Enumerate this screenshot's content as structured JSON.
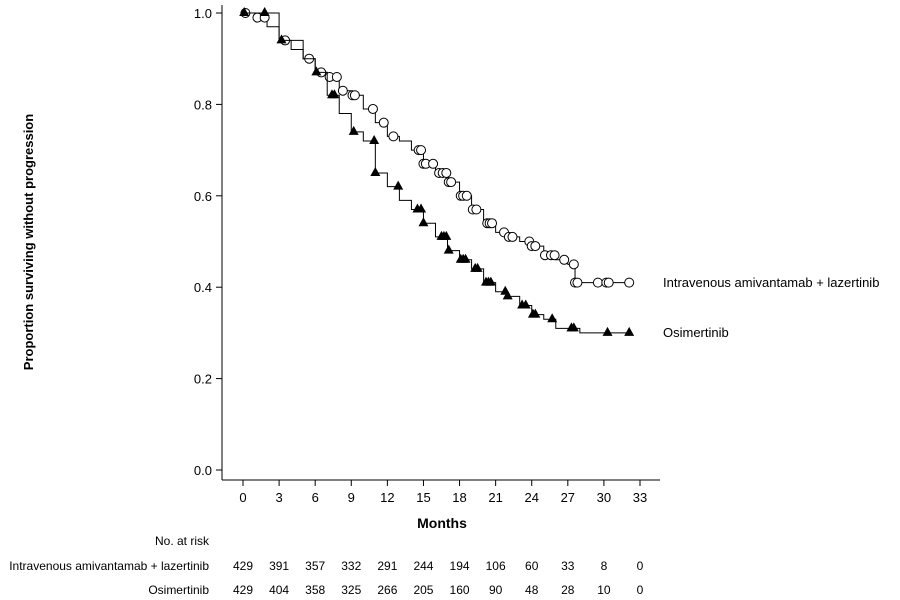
{
  "chart_data": {
    "type": "line",
    "subtype": "kaplan-meier",
    "xlabel": "Months",
    "ylabel": "Proportion surviving without progression",
    "xlim": [
      0,
      33
    ],
    "ylim": [
      0,
      1.0
    ],
    "xticks": [
      0,
      3,
      6,
      9,
      12,
      15,
      18,
      21,
      24,
      27,
      30,
      33
    ],
    "yticks": [
      "0.0",
      "0.2",
      "0.4",
      "0.6",
      "0.8",
      "1.0"
    ],
    "grid": false,
    "series": [
      {
        "name": "Intravenous amivantamab + lazertinib",
        "marker": "open-circle",
        "points": [
          [
            0,
            1.0
          ],
          [
            1,
            0.99
          ],
          [
            2,
            0.97
          ],
          [
            3,
            0.94
          ],
          [
            4,
            0.92
          ],
          [
            5,
            0.9
          ],
          [
            6,
            0.87
          ],
          [
            7,
            0.86
          ],
          [
            8,
            0.83
          ],
          [
            9,
            0.82
          ],
          [
            10,
            0.79
          ],
          [
            11,
            0.76
          ],
          [
            12,
            0.73
          ],
          [
            13,
            0.72
          ],
          [
            14,
            0.7
          ],
          [
            15,
            0.67
          ],
          [
            16,
            0.65
          ],
          [
            17,
            0.63
          ],
          [
            18,
            0.6
          ],
          [
            19,
            0.57
          ],
          [
            20,
            0.54
          ],
          [
            21,
            0.52
          ],
          [
            22,
            0.51
          ],
          [
            23,
            0.5
          ],
          [
            24,
            0.49
          ],
          [
            25,
            0.47
          ],
          [
            26,
            0.46
          ],
          [
            27,
            0.45
          ],
          [
            27.6,
            0.41
          ],
          [
            32.1,
            0.41
          ]
        ],
        "censored": [
          0.2,
          1.2,
          1.8,
          3.5,
          5.5,
          6.5,
          7.2,
          7.8,
          8.3,
          9.1,
          9.3,
          10.8,
          11.7,
          12.5,
          14.6,
          14.8,
          15.0,
          15.2,
          15.8,
          16.3,
          16.6,
          16.9,
          17.1,
          17.3,
          18.1,
          18.3,
          18.6,
          19.1,
          19.4,
          20.3,
          20.5,
          20.7,
          21.7,
          22.1,
          22.4,
          23.8,
          24.0,
          24.3,
          25.1,
          25.6,
          25.9,
          26.7,
          27.5,
          27.6,
          27.8,
          29.5,
          30.2,
          30.4,
          32.1
        ]
      },
      {
        "name": "Osimertinib",
        "marker": "filled-triangle",
        "points": [
          [
            0,
            1.0
          ],
          [
            3,
            0.94
          ],
          [
            5,
            0.9
          ],
          [
            6,
            0.87
          ],
          [
            7,
            0.82
          ],
          [
            8,
            0.78
          ],
          [
            9,
            0.74
          ],
          [
            10,
            0.72
          ],
          [
            11,
            0.65
          ],
          [
            12,
            0.62
          ],
          [
            13,
            0.59
          ],
          [
            14,
            0.57
          ],
          [
            15,
            0.54
          ],
          [
            16,
            0.51
          ],
          [
            17,
            0.48
          ],
          [
            18,
            0.46
          ],
          [
            19,
            0.44
          ],
          [
            20,
            0.41
          ],
          [
            21,
            0.39
          ],
          [
            22,
            0.38
          ],
          [
            23,
            0.36
          ],
          [
            24,
            0.34
          ],
          [
            25,
            0.33
          ],
          [
            26,
            0.31
          ],
          [
            27,
            0.31
          ],
          [
            28,
            0.3
          ],
          [
            32.1,
            0.3
          ]
        ],
        "censored": [
          0.1,
          1.8,
          3.2,
          6.1,
          7.4,
          7.6,
          9.2,
          10.9,
          11.0,
          12.9,
          14.5,
          14.8,
          15.0,
          16.5,
          16.7,
          16.9,
          17.1,
          18.1,
          18.3,
          18.5,
          19.3,
          19.5,
          20.2,
          20.4,
          20.6,
          21.8,
          22.0,
          23.2,
          23.5,
          24.1,
          24.3,
          25.7,
          27.3,
          27.5,
          30.3,
          32.1
        ]
      }
    ],
    "risk_table": {
      "header": "No. at risk",
      "rows": [
        {
          "label": "Intravenous amivantamab + lazertinib",
          "values": [
            "429",
            "391",
            "357",
            "332",
            "291",
            "244",
            "194",
            "106",
            "60",
            "33",
            "8",
            "0"
          ]
        },
        {
          "label": "Osimertinib",
          "values": [
            "429",
            "404",
            "358",
            "325",
            "266",
            "205",
            "160",
            "90",
            "48",
            "28",
            "10",
            "0"
          ]
        }
      ]
    }
  }
}
